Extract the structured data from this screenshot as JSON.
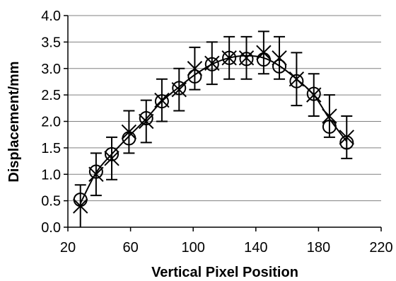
{
  "chart_data": {
    "type": "scatter",
    "xlabel": "Vertical Pixel Position",
    "ylabel": "Displacement/mm",
    "xlim": [
      20,
      220
    ],
    "ylim": [
      0.0,
      4.0
    ],
    "x_ticks": [
      20,
      60,
      100,
      140,
      180,
      220
    ],
    "y_ticks": [
      0.0,
      0.5,
      1.0,
      1.5,
      2.0,
      2.5,
      3.0,
      3.5,
      4.0
    ],
    "x_tick_labels": [
      "20",
      "60",
      "100",
      "140",
      "180",
      "220"
    ],
    "y_tick_labels": [
      "0.0",
      "0.5",
      "1.0",
      "1.5",
      "2.0",
      "2.5",
      "3.0",
      "3.5",
      "4.0"
    ],
    "grid": "horizontal",
    "series": [
      {
        "marker": "cross",
        "x": [
          28,
          38,
          48,
          59,
          70,
          80,
          91,
          101,
          112,
          123,
          134,
          145,
          155,
          166,
          177,
          187,
          198
        ],
        "y": [
          0.4,
          1.0,
          1.3,
          1.8,
          2.0,
          2.4,
          2.6,
          3.0,
          3.1,
          3.2,
          3.2,
          3.3,
          3.2,
          2.8,
          2.5,
          2.1,
          1.7
        ],
        "err": [
          0.4,
          0.4,
          0.4,
          0.4,
          0.4,
          0.4,
          0.4,
          0.4,
          0.4,
          0.4,
          0.4,
          0.4,
          0.4,
          0.5,
          0.4,
          0.4,
          0.4
        ]
      },
      {
        "marker": "circle",
        "x": [
          28,
          38,
          48,
          59,
          70,
          80,
          91,
          101,
          112,
          123,
          134,
          145,
          155,
          166,
          177,
          187,
          198
        ],
        "y": [
          0.52,
          1.05,
          1.38,
          1.68,
          2.06,
          2.38,
          2.63,
          2.85,
          3.08,
          3.2,
          3.18,
          3.17,
          3.04,
          2.76,
          2.52,
          1.9,
          1.6
        ]
      }
    ],
    "fit_line": {
      "x": [
        28,
        38,
        48,
        59,
        70,
        80,
        91,
        101,
        112,
        123,
        134,
        145,
        155,
        166,
        177,
        187,
        198
      ],
      "y": [
        0.45,
        1.03,
        1.38,
        1.72,
        2.05,
        2.38,
        2.65,
        2.88,
        3.08,
        3.2,
        3.24,
        3.2,
        3.05,
        2.8,
        2.5,
        2.05,
        1.62
      ]
    },
    "colors": {
      "marks": "#000000",
      "grid": "#808080",
      "background": "#ffffff"
    }
  }
}
